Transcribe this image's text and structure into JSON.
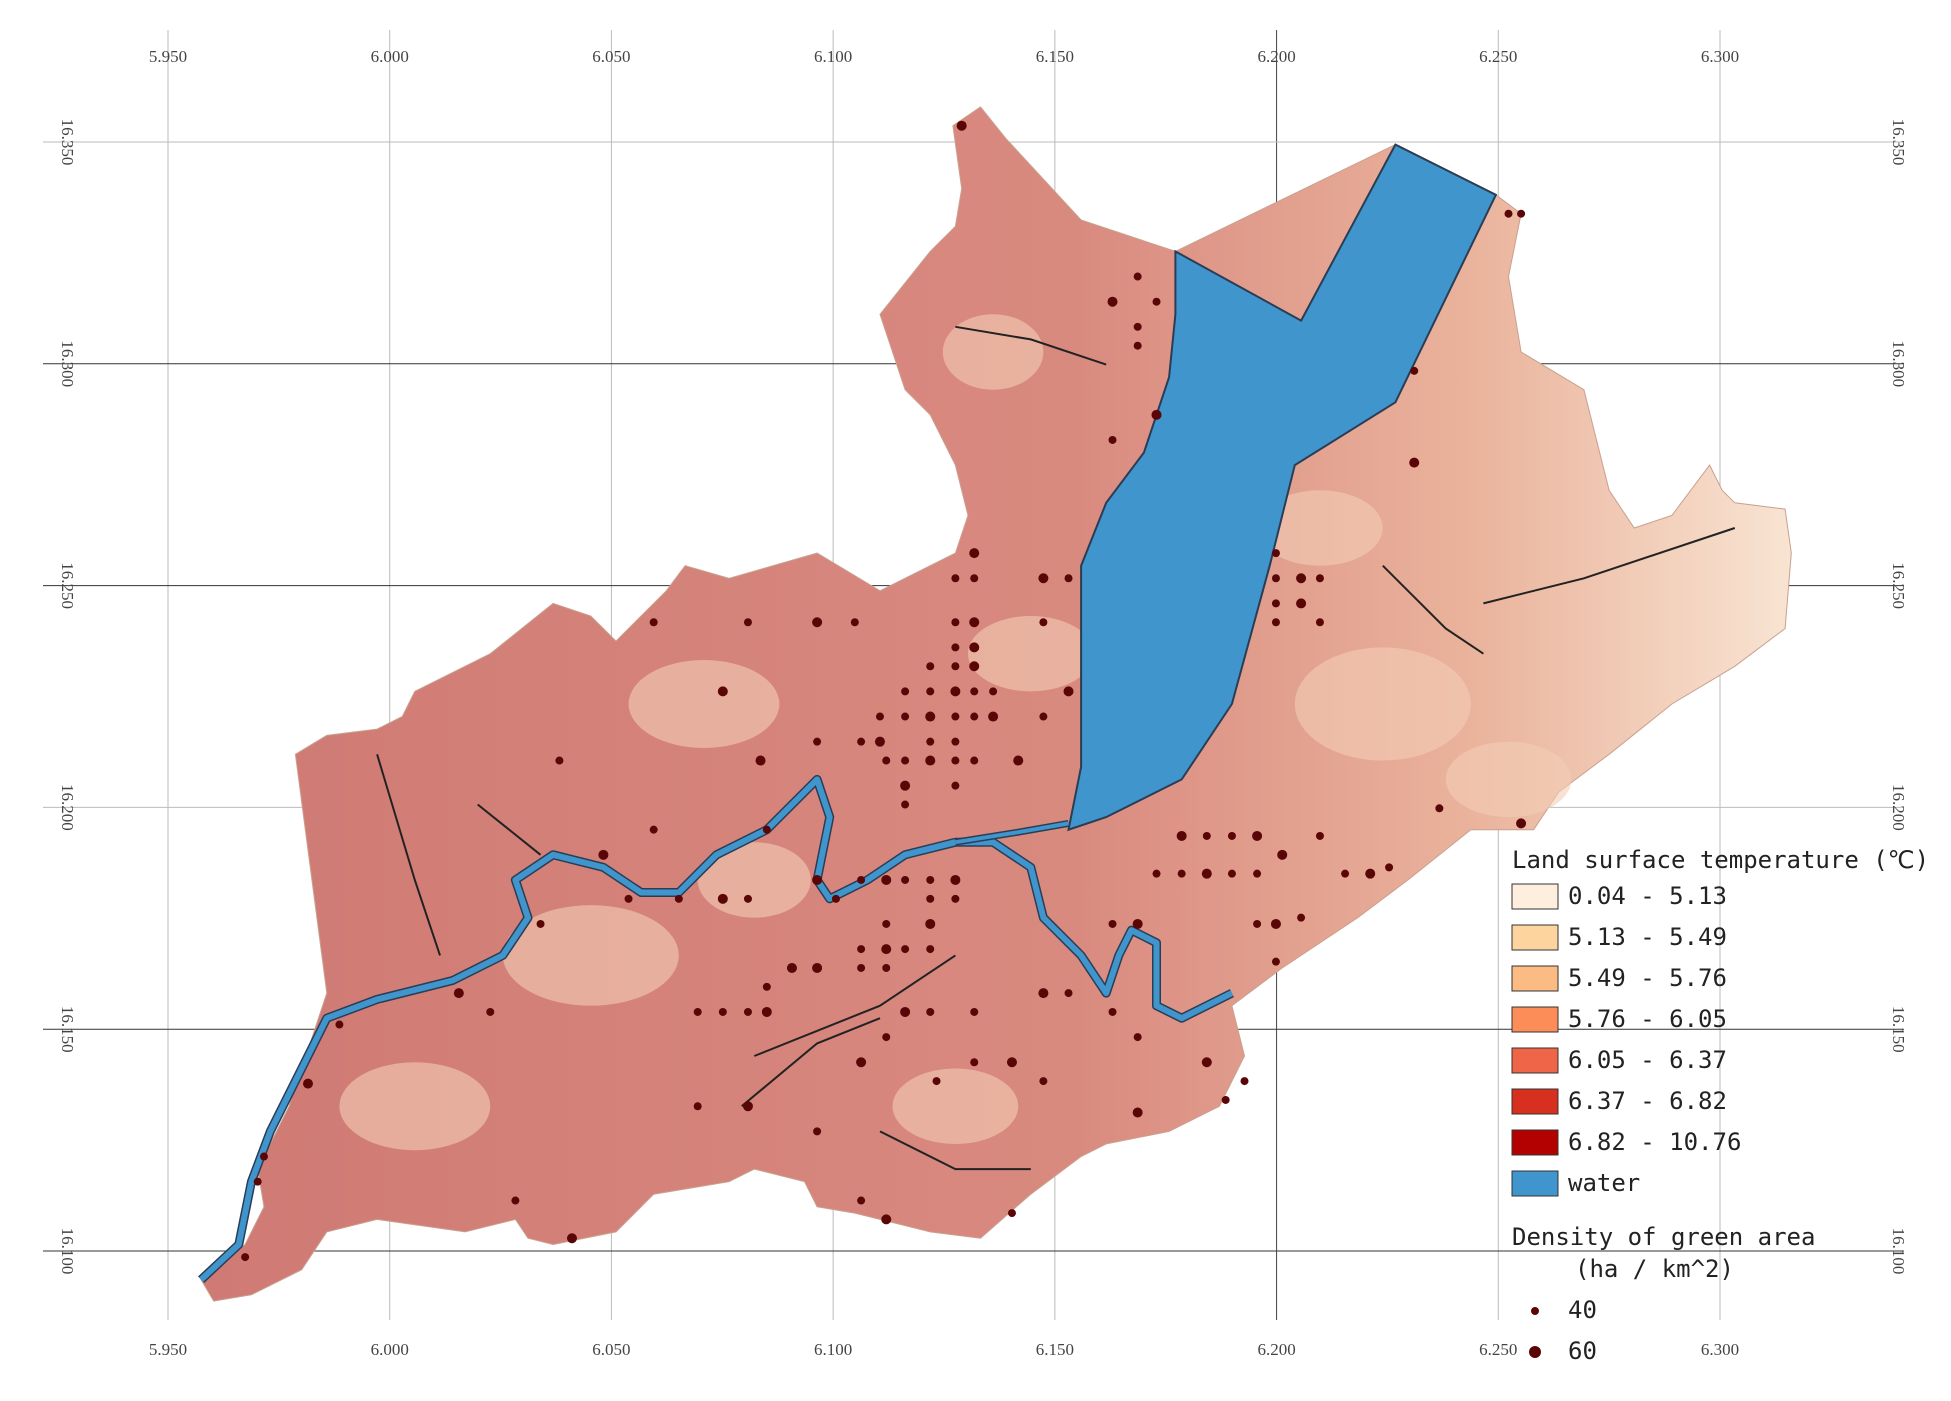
{
  "map": {
    "x_ticks": [
      {
        "value": 5.95,
        "label": "5.950"
      },
      {
        "value": 6.0,
        "label": "6.000"
      },
      {
        "value": 6.05,
        "label": "6.050"
      },
      {
        "value": 6.1,
        "label": "6.100"
      },
      {
        "value": 6.15,
        "label": "6.150"
      },
      {
        "value": 6.2,
        "label": "6.200"
      },
      {
        "value": 6.25,
        "label": "6.250"
      },
      {
        "value": 6.3,
        "label": "6.300"
      }
    ],
    "y_ticks": [
      {
        "value": 16.35,
        "label": "16.350"
      },
      {
        "value": 16.3,
        "label": "16.300"
      },
      {
        "value": 16.25,
        "label": "16.250"
      },
      {
        "value": 16.2,
        "label": "16.200"
      },
      {
        "value": 16.15,
        "label": "16.150"
      },
      {
        "value": 16.1,
        "label": "16.100"
      }
    ],
    "legend": {
      "title": "Land surface temperature (℃)",
      "classes": [
        {
          "label": "0.04 - 5.13",
          "color": "#fdeedd"
        },
        {
          "label": "5.13 - 5.49",
          "color": "#fdd49e"
        },
        {
          "label": "5.49 - 5.76",
          "color": "#fdbb84"
        },
        {
          "label": "5.76 - 6.05",
          "color": "#fc8d59"
        },
        {
          "label": "6.05 - 6.37",
          "color": "#ef6548"
        },
        {
          "label": "6.37 - 6.82",
          "color": "#d7301f"
        },
        {
          "label": "6.82 - 10.76",
          "color": "#b30000"
        }
      ],
      "water": {
        "label": "water",
        "color": "#3f95cc"
      }
    },
    "density_legend": {
      "title": "Density of green area",
      "unit": "(ha / km^2)",
      "sizes": [
        {
          "label": "40"
        },
        {
          "label": "60"
        }
      ]
    }
  }
}
